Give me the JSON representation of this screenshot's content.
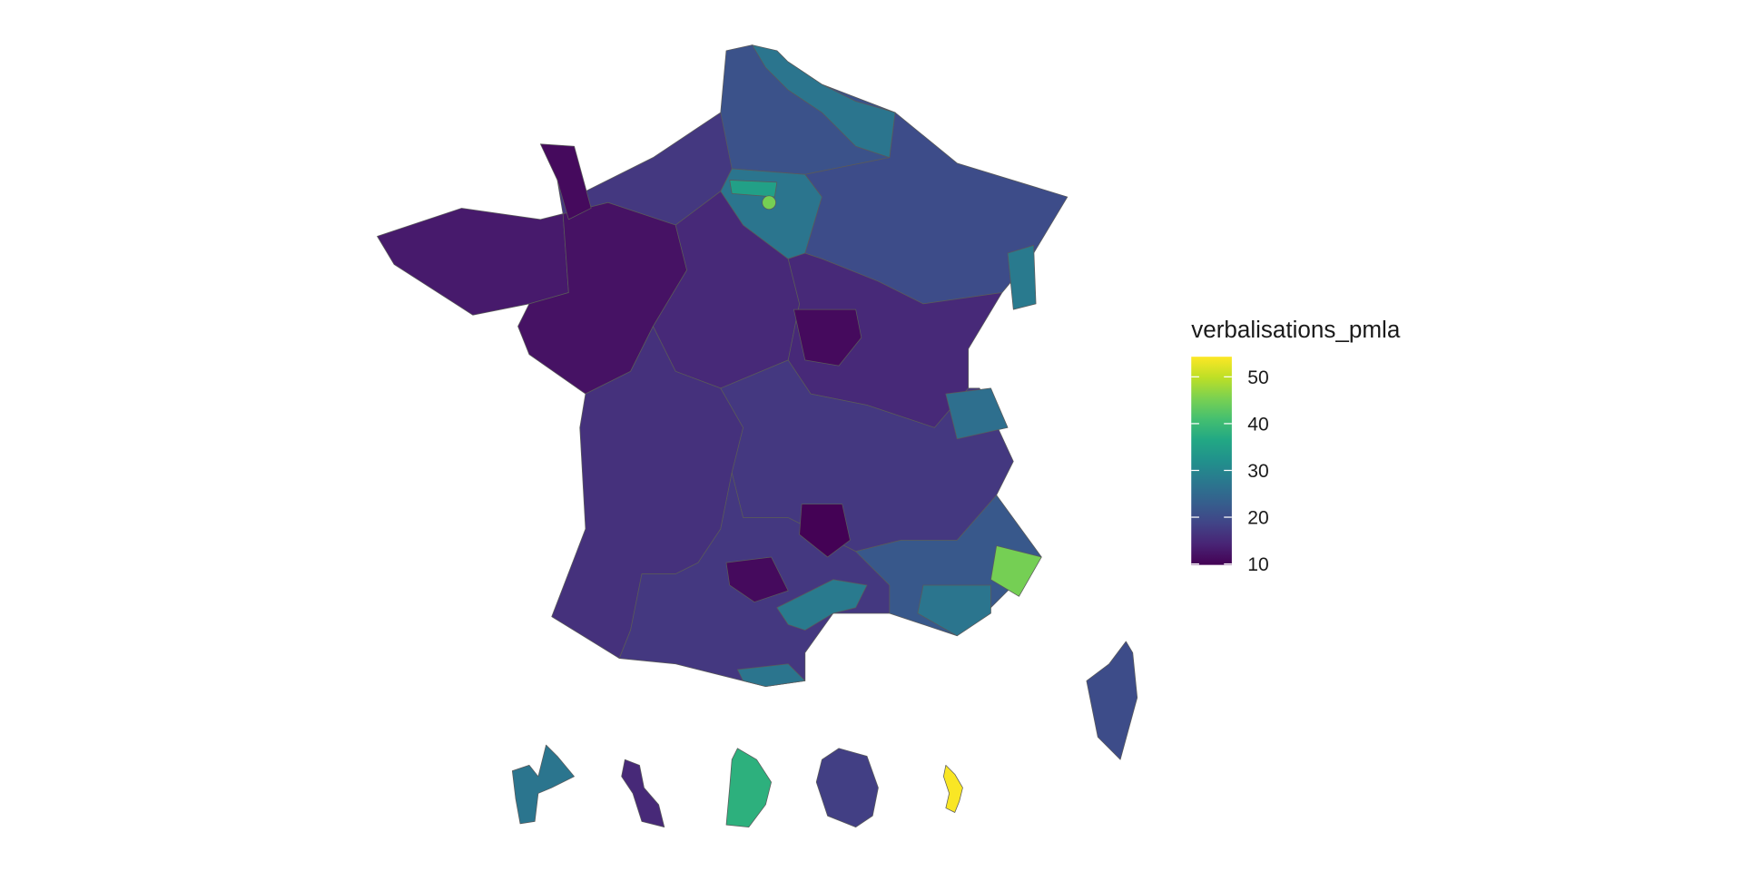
{
  "map": {
    "legend": {
      "title": "verbalisations_pmla",
      "lim": [
        9.8,
        54.3
      ],
      "ticks": [
        10,
        20,
        30,
        40,
        50
      ]
    },
    "values": [
      21,
      17,
      13,
      12,
      15,
      27,
      20,
      15,
      16,
      17,
      17,
      22,
      27,
      11,
      35,
      45,
      28,
      11,
      9.9,
      11,
      28,
      27,
      45,
      27,
      26,
      20,
      27,
      15,
      38,
      18,
      54
    ]
  }
}
